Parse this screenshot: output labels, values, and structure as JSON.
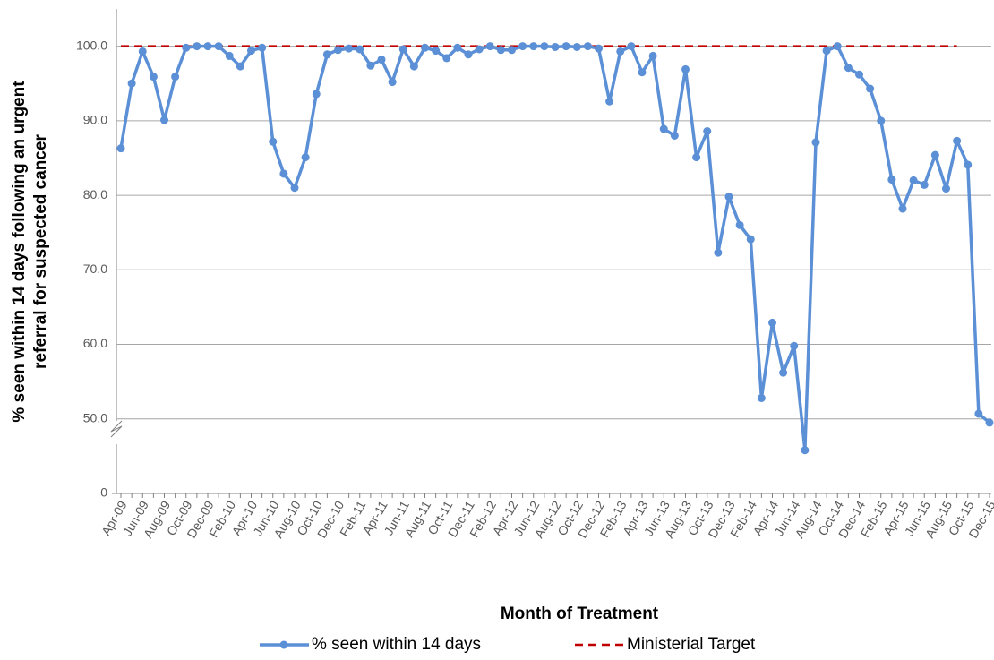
{
  "chart_data": {
    "type": "line",
    "xlabel": "Month of Treatment",
    "ylabel": [
      "% seen within 14 days following an urgent",
      "referral for suspected cancer"
    ],
    "categories": [
      "Apr-09",
      null,
      "Jun-09",
      null,
      "Aug-09",
      null,
      "Oct-09",
      null,
      "Dec-09",
      null,
      "Feb-10",
      null,
      "Apr-10",
      null,
      "Jun-10",
      null,
      "Aug-10",
      null,
      "Oct-10",
      null,
      "Dec-10",
      null,
      "Feb-11",
      null,
      "Apr-11",
      null,
      "Jun-11",
      null,
      "Aug-11",
      null,
      "Oct-11",
      null,
      "Dec-11",
      null,
      "Feb-12",
      null,
      "Apr-12",
      null,
      "Jun-12",
      null,
      "Aug-12",
      null,
      "Oct-12",
      null,
      "Dec-12",
      null,
      "Feb-13",
      null,
      "Apr-13",
      null,
      "Jun-13",
      null,
      "Aug-13",
      null,
      "Oct-13",
      null,
      "Dec-13",
      null,
      "Feb-14",
      null,
      "Apr-14",
      null,
      "Jun-14",
      null,
      "Aug-14",
      null,
      "Oct-14",
      null,
      "Dec-14",
      null,
      "Feb-15",
      null,
      "Apr-15",
      null,
      "Jun-15",
      null,
      "Aug-15",
      null,
      "Oct-15",
      null,
      "Dec-15"
    ],
    "series": [
      {
        "name": "% seen within 14 days",
        "color": "#5b8fd6",
        "style": "solid",
        "markers": true,
        "values": [
          86.3,
          95.0,
          99.3,
          95.9,
          90.1,
          95.9,
          99.8,
          100,
          100,
          100,
          98.7,
          97.3,
          99.4,
          99.8,
          87.2,
          82.9,
          81.0,
          85.1,
          93.6,
          98.9,
          99.5,
          99.7,
          99.6,
          97.4,
          98.2,
          95.2,
          99.6,
          97.3,
          99.8,
          99.4,
          98.4,
          99.8,
          98.9,
          99.6,
          100,
          99.5,
          99.5,
          100,
          100,
          100,
          99.9,
          100,
          99.9,
          100,
          99.7,
          92.6,
          99.3,
          100,
          96.5,
          98.7,
          88.9,
          88.0,
          96.9,
          85.1,
          88.6,
          72.3,
          79.8,
          76.0,
          74.1,
          52.8,
          62.9,
          56.2,
          59.8,
          45.8,
          87.1,
          99.4,
          100,
          97.1,
          96.2,
          94.3,
          90.0,
          82.1,
          78.2,
          82.0,
          81.4,
          85.4,
          80.9,
          87.3,
          84.1,
          50.7,
          49.5
        ]
      },
      {
        "name": "Ministerial Target",
        "color": "#c00000",
        "style": "dashed",
        "markers": false,
        "values": [
          100,
          100,
          100,
          100,
          100,
          100,
          100,
          100,
          100,
          100,
          100,
          100,
          100,
          100,
          100,
          100,
          100,
          100,
          100,
          100,
          100,
          100,
          100,
          100,
          100,
          100,
          100,
          100,
          100,
          100,
          100,
          100,
          100,
          100,
          100,
          100,
          100,
          100,
          100,
          100,
          100,
          100,
          100,
          100,
          100,
          100,
          100,
          100,
          100,
          100,
          100,
          100,
          100,
          100,
          100,
          100,
          100,
          100,
          100,
          100,
          100,
          100,
          100,
          100,
          100,
          100,
          100,
          100,
          100,
          100,
          100,
          100,
          100,
          100,
          100,
          100,
          100,
          100,
          null,
          null,
          null
        ]
      }
    ],
    "ylim": [
      0,
      105
    ],
    "y_break": [
      0,
      40
    ],
    "yticks": [
      0,
      {
        "value": 50,
        "label": "50.0"
      },
      {
        "value": 60,
        "label": "60.0"
      },
      {
        "value": 70,
        "label": "70.0"
      },
      {
        "value": 80,
        "label": "80.0"
      },
      {
        "value": 90,
        "label": "90.0"
      },
      {
        "value": 100,
        "label": "100.0"
      }
    ],
    "grid": true,
    "legend": "bottom"
  }
}
